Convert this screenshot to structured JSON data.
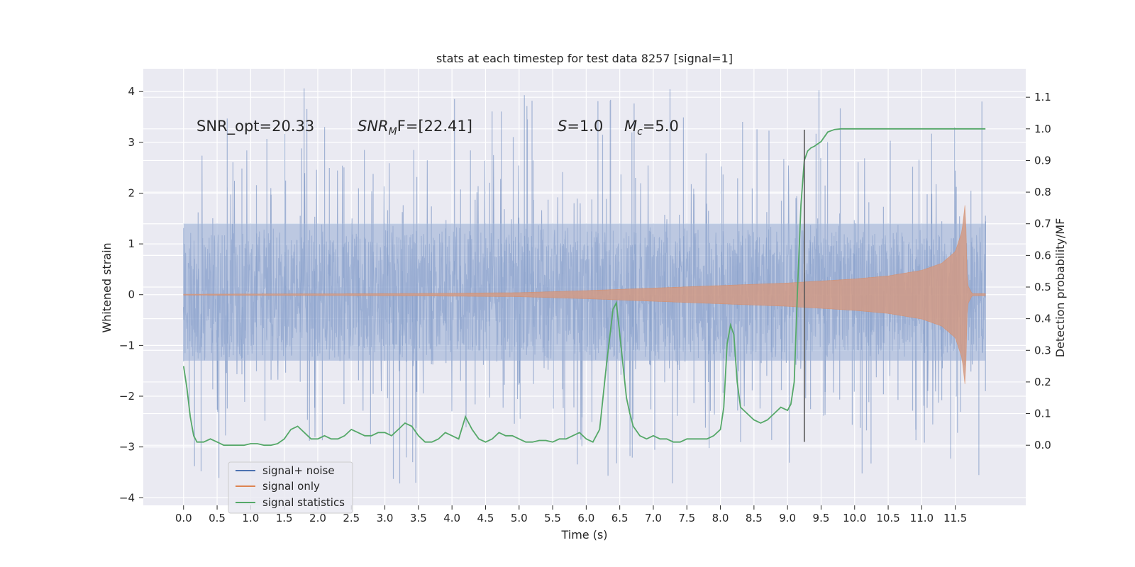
{
  "chart_data": {
    "type": "line",
    "title": "stats at each timestep for test data 8257 [signal=1]",
    "xlabel": "Time (s)",
    "ylabel_left": "Whitened strain",
    "ylabel_right": "Detection probability/MF",
    "xlim": [
      -0.6,
      12.55
    ],
    "ylim_left": [
      -4.15,
      4.45
    ],
    "ylim_right": [
      -0.19,
      1.19
    ],
    "x_ticks": [
      0.0,
      0.5,
      1.0,
      1.5,
      2.0,
      2.5,
      3.0,
      3.5,
      4.0,
      4.5,
      5.0,
      5.5,
      6.0,
      6.5,
      7.0,
      7.5,
      8.0,
      8.5,
      9.0,
      9.5,
      10.0,
      10.5,
      11.0,
      11.5
    ],
    "x_tick_labels": [
      "0.0",
      "0.5",
      "1.0",
      "1.5",
      "2.0",
      "2.5",
      "3.0",
      "3.5",
      "4.0",
      "4.5",
      "5.0",
      "5.5",
      "6.0",
      "6.5",
      "7.0",
      "7.5",
      "8.0",
      "8.5",
      "9.0",
      "9.5",
      "10.0",
      "10.5",
      "11.0",
      "11.5"
    ],
    "y_left_ticks": [
      -4,
      -3,
      -2,
      -1,
      0,
      1,
      2,
      3,
      4
    ],
    "y_left_tick_labels": [
      "−4",
      "−3",
      "−2",
      "−1",
      "0",
      "1",
      "2",
      "3",
      "4"
    ],
    "y_right_ticks": [
      0.0,
      0.1,
      0.2,
      0.3,
      0.4,
      0.5,
      0.6,
      0.7,
      0.8,
      0.9,
      1.0,
      1.1
    ],
    "y_right_tick_labels": [
      "0.0",
      "0.1",
      "0.2",
      "0.3",
      "0.4",
      "0.5",
      "0.6",
      "0.7",
      "0.8",
      "0.9",
      "1.0",
      "1.1"
    ],
    "grid": true,
    "legend_position": "lower-left",
    "series": [
      {
        "name": "signal+ noise",
        "label": "signal+ noise",
        "axis": "left",
        "color": "#4c72b0",
        "style": "dense noise trace",
        "duration_s": 11.95,
        "core_range": [
          -1.3,
          1.4
        ],
        "spike_range": [
          -3.75,
          4.1
        ]
      },
      {
        "name": "signal only",
        "label": "signal only",
        "axis": "left",
        "color": "#dd8452",
        "style": "chirp envelope",
        "merger_time_s": 11.65,
        "envelope": {
          "t": [
            0.0,
            3.0,
            5.0,
            6.0,
            7.0,
            8.0,
            9.0,
            10.0,
            10.5,
            11.0,
            11.3,
            11.5,
            11.6,
            11.65,
            11.68,
            11.75
          ],
          "amp": [
            0.01,
            0.02,
            0.04,
            0.08,
            0.13,
            0.18,
            0.23,
            0.31,
            0.37,
            0.48,
            0.62,
            0.85,
            1.25,
            1.85,
            0.2,
            0.02
          ]
        }
      },
      {
        "name": "signal statistics",
        "label": "signal statistics",
        "axis": "right",
        "color": "#55a868",
        "x": [
          0.0,
          0.05,
          0.1,
          0.15,
          0.2,
          0.3,
          0.4,
          0.5,
          0.6,
          0.7,
          0.8,
          0.9,
          1.0,
          1.1,
          1.2,
          1.3,
          1.4,
          1.5,
          1.6,
          1.7,
          1.8,
          1.9,
          2.0,
          2.1,
          2.2,
          2.3,
          2.4,
          2.5,
          2.6,
          2.7,
          2.8,
          2.9,
          3.0,
          3.1,
          3.2,
          3.3,
          3.4,
          3.5,
          3.6,
          3.7,
          3.8,
          3.9,
          4.0,
          4.1,
          4.2,
          4.3,
          4.4,
          4.5,
          4.6,
          4.7,
          4.8,
          4.9,
          5.0,
          5.1,
          5.2,
          5.3,
          5.4,
          5.5,
          5.6,
          5.7,
          5.8,
          5.9,
          6.0,
          6.1,
          6.2,
          6.3,
          6.4,
          6.45,
          6.5,
          6.55,
          6.6,
          6.65,
          6.7,
          6.8,
          6.9,
          7.0,
          7.1,
          7.2,
          7.3,
          7.4,
          7.5,
          7.6,
          7.7,
          7.8,
          7.9,
          8.0,
          8.05,
          8.1,
          8.15,
          8.2,
          8.25,
          8.3,
          8.4,
          8.5,
          8.6,
          8.7,
          8.8,
          8.9,
          9.0,
          9.05,
          9.1,
          9.15,
          9.2,
          9.25,
          9.3,
          9.35,
          9.4,
          9.5,
          9.6,
          9.7,
          9.8,
          9.9,
          10.0,
          10.2,
          10.5,
          11.0,
          11.5,
          11.95
        ],
        "y": [
          0.25,
          0.18,
          0.09,
          0.03,
          0.01,
          0.01,
          0.02,
          0.01,
          0.0,
          0.0,
          0.0,
          0.0,
          0.005,
          0.005,
          0.0,
          0.0,
          0.005,
          0.02,
          0.05,
          0.06,
          0.04,
          0.02,
          0.02,
          0.03,
          0.02,
          0.02,
          0.03,
          0.05,
          0.04,
          0.03,
          0.03,
          0.04,
          0.04,
          0.03,
          0.05,
          0.07,
          0.06,
          0.03,
          0.01,
          0.01,
          0.02,
          0.04,
          0.03,
          0.02,
          0.09,
          0.05,
          0.02,
          0.01,
          0.02,
          0.04,
          0.03,
          0.03,
          0.02,
          0.01,
          0.01,
          0.015,
          0.015,
          0.01,
          0.02,
          0.02,
          0.03,
          0.04,
          0.02,
          0.01,
          0.05,
          0.25,
          0.43,
          0.45,
          0.35,
          0.25,
          0.15,
          0.1,
          0.06,
          0.03,
          0.02,
          0.03,
          0.02,
          0.02,
          0.01,
          0.01,
          0.02,
          0.02,
          0.02,
          0.02,
          0.03,
          0.05,
          0.12,
          0.32,
          0.38,
          0.35,
          0.2,
          0.12,
          0.1,
          0.08,
          0.07,
          0.08,
          0.1,
          0.12,
          0.11,
          0.13,
          0.2,
          0.5,
          0.76,
          0.9,
          0.93,
          0.94,
          0.945,
          0.96,
          0.99,
          0.998,
          1.0,
          1.0,
          1.0,
          1.0,
          1.0,
          1.0,
          1.0,
          1.0
        ]
      }
    ],
    "vertical_line": {
      "x": 9.25,
      "ymin": -2.9,
      "ymax": 3.25,
      "color": "#555555"
    },
    "annotations": [
      {
        "text": "SNR_opt=20.33"
      },
      {
        "base": "SNR",
        "sub": "M",
        "rest": "F=[22.41]"
      },
      {
        "base": "S",
        "rest": "=1.0"
      },
      {
        "base": "M",
        "sub": "c",
        "rest": "=5.0"
      }
    ]
  }
}
